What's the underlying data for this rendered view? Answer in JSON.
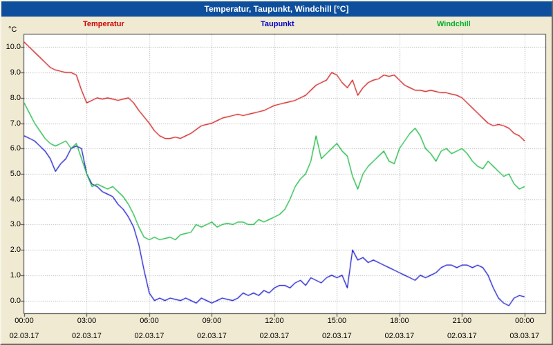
{
  "window": {
    "title": "Temperatur, Taupunkt, Windchill [°C]",
    "titlebar_color": "#0d4f9c",
    "background_color": "#f0ead2"
  },
  "legend": [
    {
      "label": "Temperatur",
      "color": "#cc0000"
    },
    {
      "label": "Taupunkt",
      "color": "#0000c8"
    },
    {
      "label": "Windchill",
      "color": "#00b22d"
    }
  ],
  "chart_data": {
    "type": "line",
    "title": "Temperatur, Taupunkt, Windchill [°C]",
    "xlabel": "",
    "ylabel": "°C",
    "ylim": [
      -0.5,
      10.5
    ],
    "grid": true,
    "grid_color": "#a8a8a8",
    "plot_background": "#ffffff",
    "y_ticks": [
      {
        "value": 0,
        "label": "0.0"
      },
      {
        "value": 1,
        "label": "1.0"
      },
      {
        "value": 2,
        "label": "2.0"
      },
      {
        "value": 3,
        "label": "3.0"
      },
      {
        "value": 4,
        "label": "4.0"
      },
      {
        "value": 5,
        "label": "5.0"
      },
      {
        "value": 6,
        "label": "6.0"
      },
      {
        "value": 7,
        "label": "7.0"
      },
      {
        "value": 8,
        "label": "8.0"
      },
      {
        "value": 9,
        "label": "9.0"
      },
      {
        "value": 10,
        "label": "10.0"
      }
    ],
    "x_ticks": [
      {
        "hour": 0,
        "time": "00:00",
        "date": "02.03.17"
      },
      {
        "hour": 3,
        "time": "03:00",
        "date": "02.03.17"
      },
      {
        "hour": 6,
        "time": "06:00",
        "date": "02.03.17"
      },
      {
        "hour": 9,
        "time": "09:00",
        "date": "02.03.17"
      },
      {
        "hour": 12,
        "time": "12:00",
        "date": "02.03.17"
      },
      {
        "hour": 15,
        "time": "15:00",
        "date": "02.03.17"
      },
      {
        "hour": 18,
        "time": "18:00",
        "date": "02.03.17"
      },
      {
        "hour": 21,
        "time": "21:00",
        "date": "02.03.17"
      },
      {
        "hour": 24,
        "time": "00:00",
        "date": "03.03.17"
      }
    ],
    "x_start_hour": 0,
    "x_step_hours": 0.25,
    "x_span_hours": 25,
    "series": [
      {
        "name": "Temperatur",
        "color": "#cc0000",
        "values": [
          10.2,
          10.0,
          9.8,
          9.6,
          9.4,
          9.2,
          9.1,
          9.05,
          9.0,
          9.0,
          8.9,
          8.3,
          7.8,
          7.9,
          8.0,
          7.95,
          8.0,
          7.95,
          7.9,
          7.95,
          8.0,
          7.8,
          7.5,
          7.25,
          7.0,
          6.7,
          6.5,
          6.4,
          6.4,
          6.45,
          6.4,
          6.5,
          6.6,
          6.75,
          6.9,
          6.95,
          7.0,
          7.1,
          7.2,
          7.25,
          7.3,
          7.35,
          7.3,
          7.35,
          7.4,
          7.45,
          7.5,
          7.6,
          7.7,
          7.75,
          7.8,
          7.85,
          7.9,
          8.0,
          8.1,
          8.3,
          8.5,
          8.6,
          8.7,
          9.0,
          8.9,
          8.6,
          8.4,
          8.7,
          8.1,
          8.4,
          8.6,
          8.7,
          8.75,
          8.9,
          8.85,
          8.9,
          8.7,
          8.5,
          8.4,
          8.3,
          8.3,
          8.25,
          8.3,
          8.25,
          8.2,
          8.2,
          8.15,
          8.1,
          8.0,
          7.8,
          7.6,
          7.4,
          7.2,
          7.0,
          6.9,
          6.95,
          6.9,
          6.8,
          6.6,
          6.5,
          6.3
        ]
      },
      {
        "name": "Taupunkt",
        "color": "#0000c8",
        "values": [
          6.5,
          6.4,
          6.3,
          6.1,
          5.9,
          5.6,
          5.1,
          5.4,
          5.6,
          6.0,
          6.1,
          6.0,
          5.0,
          4.6,
          4.5,
          4.3,
          4.2,
          4.1,
          3.8,
          3.6,
          3.3,
          2.9,
          2.2,
          1.2,
          0.3,
          0.0,
          0.1,
          0.0,
          0.1,
          0.05,
          0.0,
          0.1,
          0.0,
          -0.1,
          0.1,
          0.0,
          -0.1,
          0.0,
          0.1,
          0.05,
          0.0,
          0.1,
          0.3,
          0.2,
          0.3,
          0.2,
          0.4,
          0.3,
          0.5,
          0.6,
          0.6,
          0.5,
          0.7,
          0.8,
          0.6,
          0.9,
          0.8,
          0.7,
          0.9,
          1.0,
          0.9,
          1.0,
          0.5,
          2.0,
          1.6,
          1.7,
          1.5,
          1.6,
          1.5,
          1.4,
          1.3,
          1.2,
          1.1,
          1.0,
          0.9,
          0.8,
          1.0,
          0.9,
          1.0,
          1.1,
          1.3,
          1.4,
          1.4,
          1.3,
          1.4,
          1.4,
          1.3,
          1.4,
          1.3,
          1.0,
          0.5,
          0.1,
          -0.1,
          -0.2,
          0.1,
          0.2,
          0.15
        ]
      },
      {
        "name": "Windchill",
        "color": "#00b22d",
        "values": [
          7.8,
          7.4,
          7.0,
          6.7,
          6.4,
          6.2,
          6.1,
          6.2,
          6.3,
          6.0,
          6.2,
          5.6,
          5.0,
          4.5,
          4.6,
          4.5,
          4.4,
          4.5,
          4.3,
          4.1,
          3.8,
          3.4,
          2.9,
          2.5,
          2.4,
          2.5,
          2.4,
          2.45,
          2.5,
          2.4,
          2.6,
          2.65,
          2.7,
          3.0,
          2.9,
          3.0,
          3.1,
          2.9,
          3.0,
          3.05,
          3.0,
          3.1,
          3.1,
          3.0,
          3.0,
          3.2,
          3.1,
          3.2,
          3.3,
          3.4,
          3.6,
          4.0,
          4.5,
          4.8,
          5.0,
          5.5,
          6.5,
          5.6,
          5.8,
          6.0,
          6.2,
          5.9,
          5.7,
          4.9,
          4.4,
          5.0,
          5.3,
          5.5,
          5.7,
          5.9,
          5.5,
          5.4,
          6.0,
          6.3,
          6.6,
          6.8,
          6.5,
          6.0,
          5.8,
          5.5,
          5.9,
          6.0,
          5.8,
          5.9,
          6.0,
          5.8,
          5.5,
          5.3,
          5.2,
          5.5,
          5.3,
          5.1,
          4.9,
          5.0,
          4.6,
          4.4,
          4.5
        ]
      }
    ]
  }
}
